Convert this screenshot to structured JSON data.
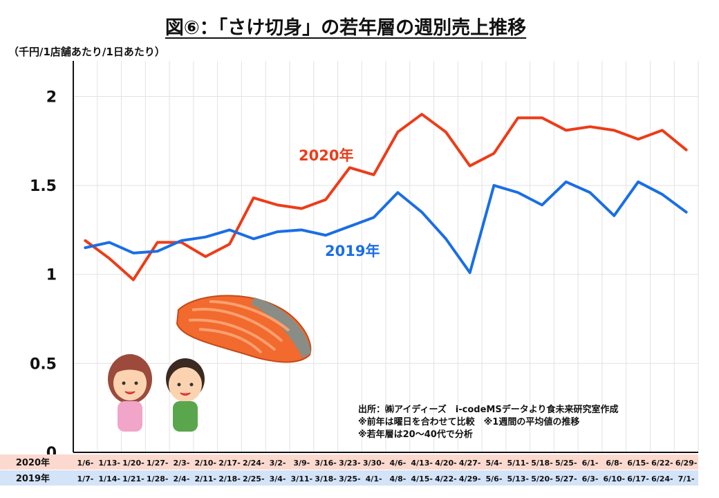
{
  "title": "図⑥：「さけ切身」の若年層の週別売上推移",
  "unit_label": "（千円/1店舗あたり/1日あたり）",
  "notes": [
    "出所：㈱アイディーズ　i-codeMSデータより食未来研究室作成",
    "※前年は曜日を合わせて比較　※1週間の平均値の推移",
    "※若年層は20～40代で分析"
  ],
  "colors": {
    "2020": "#ee3b18",
    "2019": "#1a6ee6"
  },
  "chart_data": {
    "type": "line",
    "title": "図⑥：「さけ切身」の若年層の週別売上推移",
    "ylabel": "（千円/1店舗あたり/1日あたり）",
    "ylim": [
      0,
      2.2
    ],
    "yticks": [
      0,
      0.5,
      1,
      1.5,
      2
    ],
    "ytick_labels": [
      "0",
      "0.5",
      "1",
      "1.5",
      "2"
    ],
    "grid": true,
    "x_2020": [
      "1/6-",
      "1/13-",
      "1/20-",
      "1/27-",
      "2/3-",
      "2/10-",
      "2/17-",
      "2/24-",
      "3/2-",
      "3/9-",
      "3/16-",
      "3/23-",
      "3/30-",
      "4/6-",
      "4/13-",
      "4/20-",
      "4/27-",
      "5/4-",
      "5/11-",
      "5/18-",
      "5/25-",
      "6/1-",
      "6/8-",
      "6/15-",
      "6/22-",
      "6/29-"
    ],
    "x_2019": [
      "1/7-",
      "1/14-",
      "1/21-",
      "1/28-",
      "2/4-",
      "2/11-",
      "2/18-",
      "2/25-",
      "3/4-",
      "3/11-",
      "3/18-",
      "3/25-",
      "4/1-",
      "4/8-",
      "4/15-",
      "4/22-",
      "4/29-",
      "5/6-",
      "5/13-",
      "5/20-",
      "5/27-",
      "6/3-",
      "6/10-",
      "6/17-",
      "6/24-",
      "7/1-"
    ],
    "row_labels": [
      "2020年",
      "2019年"
    ],
    "series": [
      {
        "name": "2020年",
        "values": [
          1.19,
          1.09,
          0.97,
          1.18,
          1.18,
          1.1,
          1.17,
          1.43,
          1.39,
          1.37,
          1.42,
          1.6,
          1.56,
          1.8,
          1.9,
          1.8,
          1.61,
          1.68,
          1.88,
          1.88,
          1.81,
          1.83,
          1.81,
          1.76,
          1.81,
          1.7
        ]
      },
      {
        "name": "2019年",
        "values": [
          1.15,
          1.18,
          1.12,
          1.13,
          1.19,
          1.21,
          1.25,
          1.2,
          1.24,
          1.25,
          1.22,
          1.27,
          1.32,
          1.46,
          1.35,
          1.2,
          1.01,
          1.5,
          1.46,
          1.39,
          1.52,
          1.46,
          1.33,
          1.52,
          1.45,
          1.35
        ]
      }
    ]
  }
}
